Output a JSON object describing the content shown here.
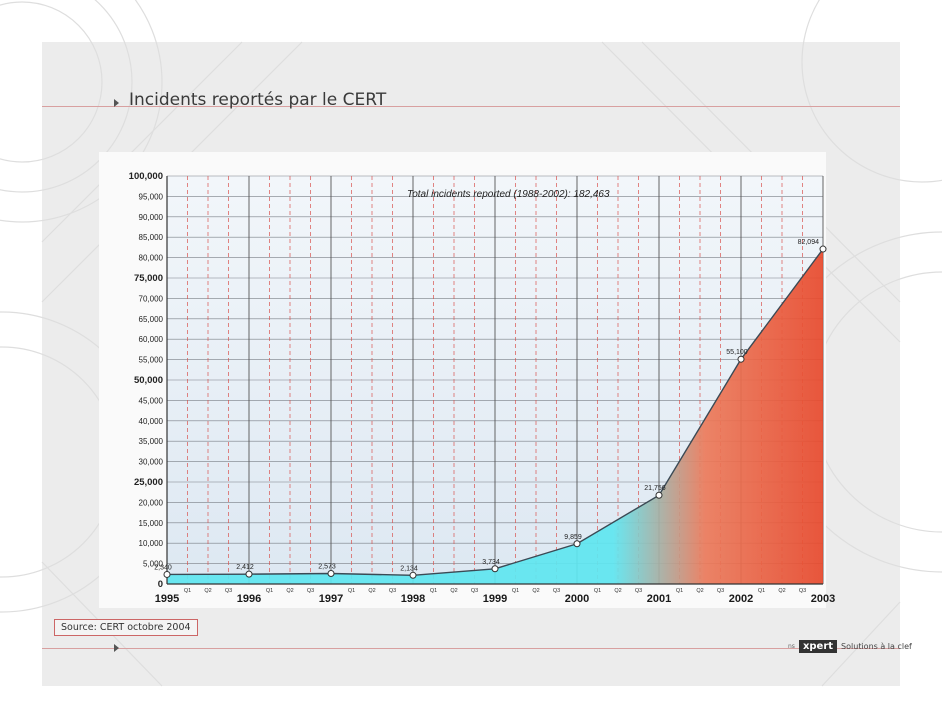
{
  "title": "Incidents reportés par le CERT",
  "source": "Source: CERT octobre 2004",
  "logo": {
    "prefix": "ns",
    "brand": "xpert",
    "tagline": "Solutions à la clef"
  },
  "colors": {
    "accent_rule": "#d8a0a0",
    "area_cyan": "#5fe6f0",
    "area_red": "#e8492c",
    "source_border": "#cc6666"
  },
  "chart_data": {
    "type": "area",
    "annotation": "Total incidents reported (1988-2002): 182,463",
    "x": [
      1995,
      1996,
      1997,
      1998,
      1999,
      2000,
      2001,
      2002,
      2003
    ],
    "values": [
      2340,
      2412,
      2573,
      2134,
      3734,
      9859,
      21756,
      55100,
      82094
    ],
    "data_labels": [
      "2,340",
      "2,412",
      "2,573",
      "2,134",
      "3,734",
      "9,859",
      "21,756",
      "55,100",
      "82,094"
    ],
    "year_labels": [
      "1995",
      "1996",
      "1997",
      "1998",
      "1999",
      "2000",
      "2001",
      "2002",
      "2003"
    ],
    "quarter_labels": [
      "Q1",
      "Q2",
      "Q3"
    ],
    "ylim": [
      0,
      100000
    ],
    "yticks": [
      0,
      5000,
      10000,
      15000,
      20000,
      25000,
      30000,
      35000,
      40000,
      45000,
      50000,
      55000,
      60000,
      65000,
      70000,
      75000,
      80000,
      85000,
      90000,
      95000,
      100000
    ],
    "ytick_labels": [
      "0",
      "5,000",
      "10,000",
      "15,000",
      "20,000",
      "25,000",
      "30,000",
      "35,000",
      "40,000",
      "45,000",
      "50,000",
      "55,000",
      "60,000",
      "65,000",
      "70,000",
      "75,000",
      "80,000",
      "85,000",
      "90,000",
      "95,000",
      "100,000"
    ],
    "grid": true
  }
}
